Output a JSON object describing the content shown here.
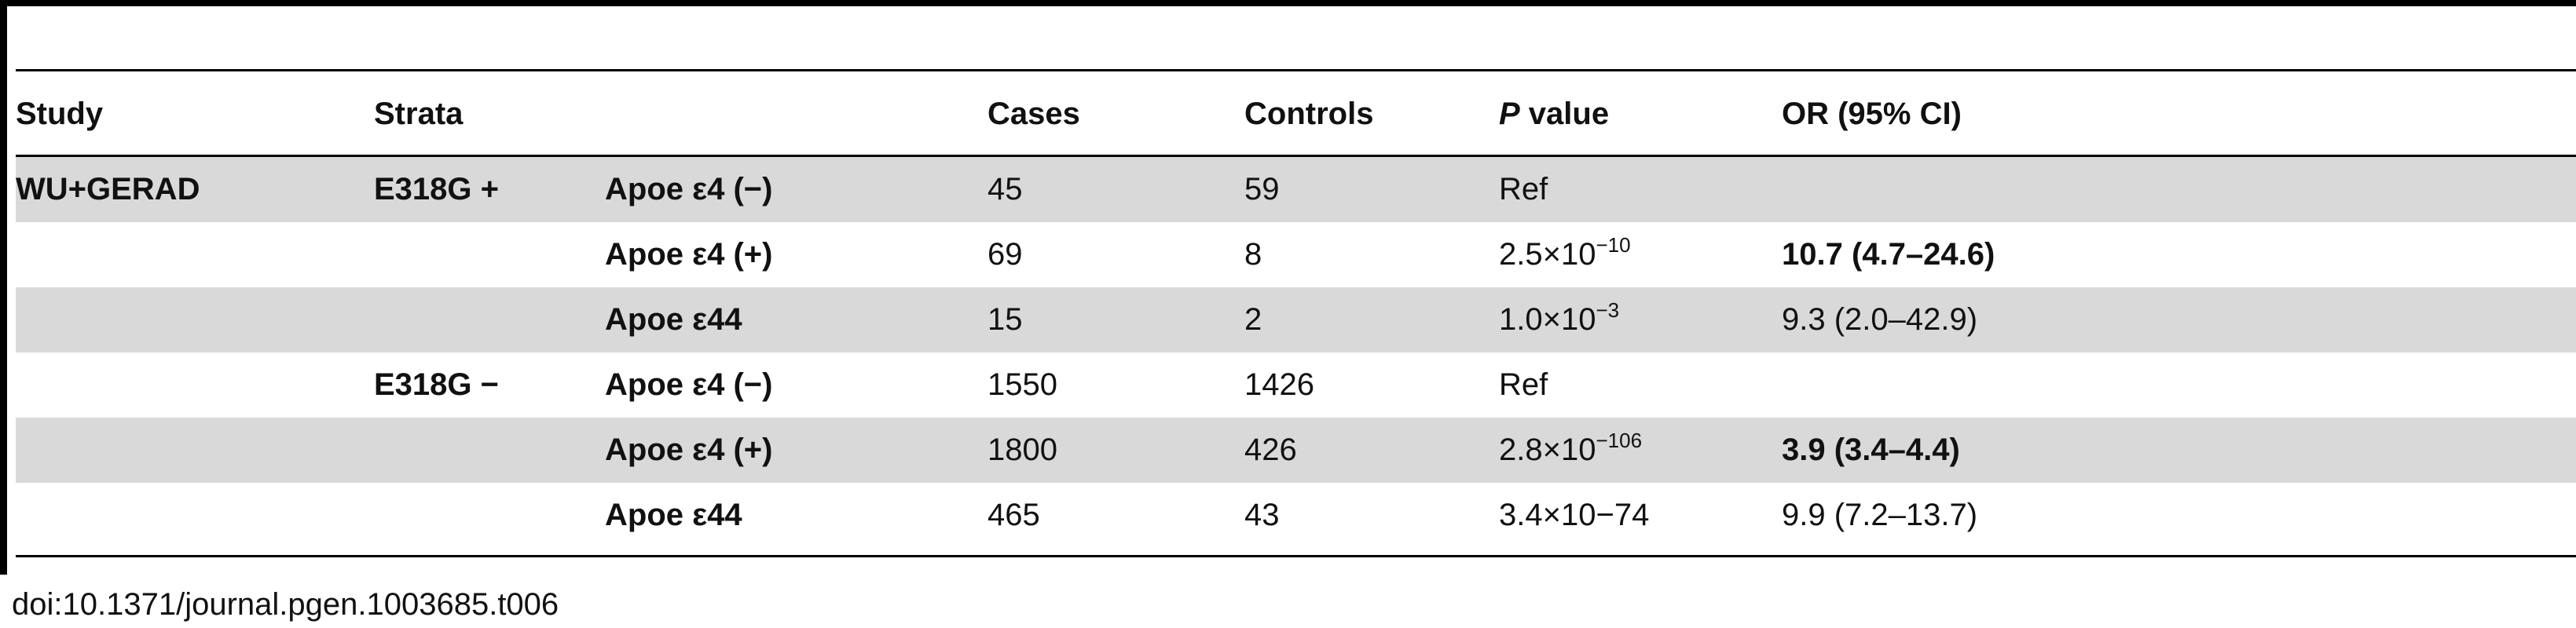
{
  "table": {
    "headers": {
      "study": "Study",
      "strata": "Strata",
      "cases": "Cases",
      "controls": "Controls",
      "p_italic": "P",
      "p_rest": " value",
      "or": "OR (95% CI)"
    },
    "rows": [
      {
        "study": "WU+GERAD",
        "strata": "E318G +",
        "apoe": "Apoe ε4 (−)",
        "cases": "45",
        "controls": "59",
        "p_base": "Ref",
        "p_exp": "",
        "or": "",
        "shaded": true
      },
      {
        "study": "",
        "strata": "",
        "apoe": "Apoe ε4 (+)",
        "cases": "69",
        "controls": "8",
        "p_base": "2.5×10",
        "p_exp": "−10",
        "or": "10.7 (4.7–24.6)",
        "or_bold": true,
        "shaded": false
      },
      {
        "study": "",
        "strata": "",
        "apoe": "Apoe ε44",
        "cases": "15",
        "controls": "2",
        "p_base": "1.0×10",
        "p_exp": "−3",
        "or": "9.3 (2.0–42.9)",
        "shaded": true
      },
      {
        "study": "",
        "strata": "E318G −",
        "apoe": "Apoe ε4 (−)",
        "cases": "1550",
        "controls": "1426",
        "p_base": "Ref",
        "p_exp": "",
        "or": "",
        "shaded": false
      },
      {
        "study": "",
        "strata": "",
        "apoe": "Apoe ε4 (+)",
        "cases": "1800",
        "controls": "426",
        "p_base": "2.8×10",
        "p_exp": "−106",
        "or": "3.9 (3.4–4.4)",
        "or_bold": true,
        "shaded": true
      },
      {
        "study": "",
        "strata": "",
        "apoe": "Apoe ε44",
        "cases": "465",
        "controls": "43",
        "p_base": "3.4×10−74",
        "p_exp": "",
        "or": "9.9 (7.2–13.7)",
        "shaded": false
      }
    ]
  },
  "doi": "doi:10.1371/journal.pgen.1003685.t006"
}
